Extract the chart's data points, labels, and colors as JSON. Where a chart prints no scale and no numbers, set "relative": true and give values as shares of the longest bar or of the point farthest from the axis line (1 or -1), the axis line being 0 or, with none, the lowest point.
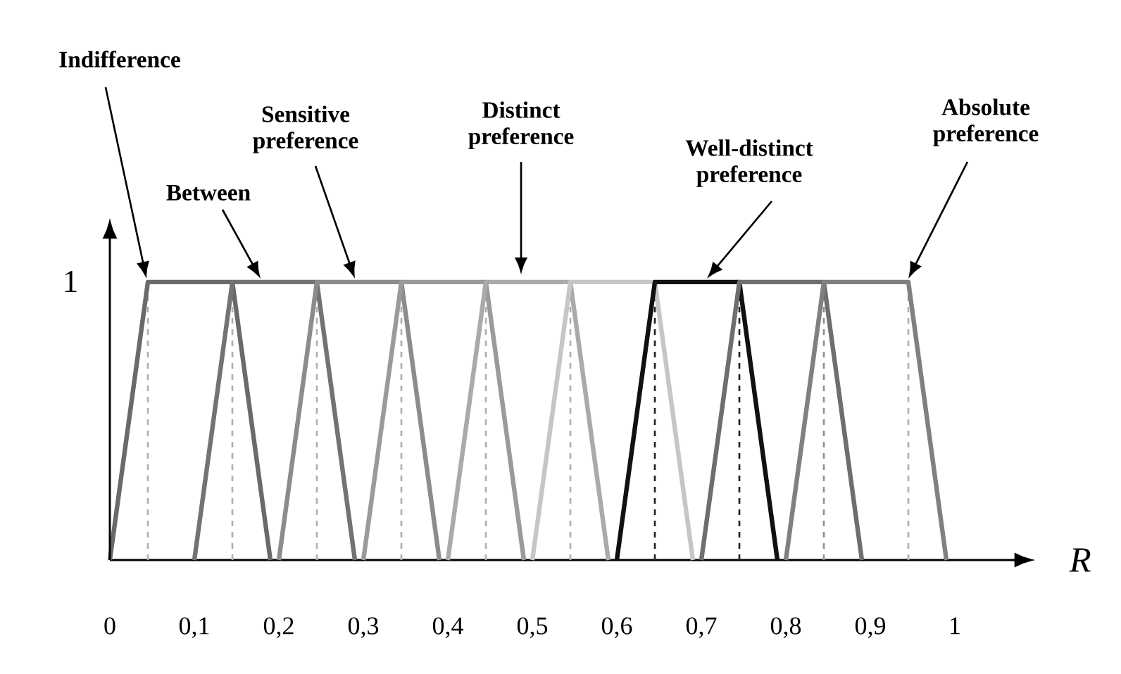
{
  "chart_data": {
    "type": "line",
    "xlabel": "R",
    "marker": "none",
    "line_style": "solid",
    "xlim": [
      0,
      1.07
    ],
    "xticks": [
      0,
      {
        "value": 0.1,
        "label": "0,1"
      },
      {
        "value": 0.2,
        "label": "0,2"
      },
      {
        "value": 0.3,
        "label": "0,3"
      },
      {
        "value": 0.4,
        "label": "0,4"
      },
      {
        "value": 0.5,
        "label": "0,5"
      },
      {
        "value": 0.6,
        "label": "0,6"
      },
      {
        "value": 0.7,
        "label": "0,7"
      },
      {
        "value": 0.8,
        "label": "0,8"
      },
      {
        "value": 0.9,
        "label": "0,9"
      },
      1
    ],
    "relative": true,
    "series": [
      {
        "color": "#6a6a6a",
        "x": [
          0,
          0.045,
          0.145,
          0.19
        ],
        "values": [
          0,
          1,
          1,
          0
        ]
      },
      {
        "color": "#737373",
        "x": [
          0.1,
          0.145,
          0.245,
          0.29
        ],
        "values": [
          0,
          1,
          1,
          0
        ]
      },
      {
        "color": "#8c8c8c",
        "x": [
          0.2,
          0.245,
          0.345,
          0.39
        ],
        "values": [
          0,
          1,
          1,
          0
        ]
      },
      {
        "color": "#9a9a9a",
        "x": [
          0.3,
          0.345,
          0.445,
          0.49
        ],
        "values": [
          0,
          1,
          1,
          0
        ]
      },
      {
        "color": "#aaaaaa",
        "x": [
          0.4,
          0.445,
          0.545,
          0.59
        ],
        "values": [
          0,
          1,
          1,
          0
        ]
      },
      {
        "color": "#c6c6c6",
        "x": [
          0.5,
          0.545,
          0.645,
          0.69
        ],
        "values": [
          0,
          1,
          1,
          0
        ]
      },
      {
        "color": "#111111",
        "x": [
          0.6,
          0.645,
          0.745,
          0.79
        ],
        "values": [
          0,
          1,
          1,
          0
        ]
      },
      {
        "color": "#6e6e6e",
        "x": [
          0.7,
          0.745,
          0.845,
          0.89
        ],
        "values": [
          0,
          1,
          1,
          0
        ]
      },
      {
        "color": "#808080",
        "x": [
          0.8,
          0.845,
          0.945,
          0.99
        ],
        "values": [
          0,
          1,
          1,
          0
        ]
      }
    ],
    "ref_lines": [
      {
        "axis": "x",
        "value": 0.045,
        "color": "#b0b0b0",
        "line_style": "dashed"
      },
      {
        "axis": "x",
        "value": 0.145,
        "color": "#b0b0b0",
        "line_style": "dashed"
      },
      {
        "axis": "x",
        "value": 0.245,
        "color": "#b0b0b0",
        "line_style": "dashed"
      },
      {
        "axis": "x",
        "value": 0.345,
        "color": "#b0b0b0",
        "line_style": "dashed"
      },
      {
        "axis": "x",
        "value": 0.445,
        "color": "#b0b0b0",
        "line_style": "dashed"
      },
      {
        "axis": "x",
        "value": 0.545,
        "color": "#b0b0b0",
        "line_style": "dashed"
      },
      {
        "axis": "x",
        "value": 0.645,
        "color": "#222222",
        "line_style": "dashed"
      },
      {
        "axis": "x",
        "value": 0.745,
        "color": "#222222",
        "line_style": "dashed"
      },
      {
        "axis": "x",
        "value": 0.845,
        "color": "#909090",
        "line_style": "dashed"
      },
      {
        "axis": "x",
        "value": 0.945,
        "color": "#b0b0b0",
        "line_style": "dashed"
      }
    ],
    "annotations": [
      "Indifference",
      "Between",
      "Sensitive preference",
      "Distinct preference",
      "Well-distinct preference",
      "Absolute preference",
      "1"
    ]
  }
}
